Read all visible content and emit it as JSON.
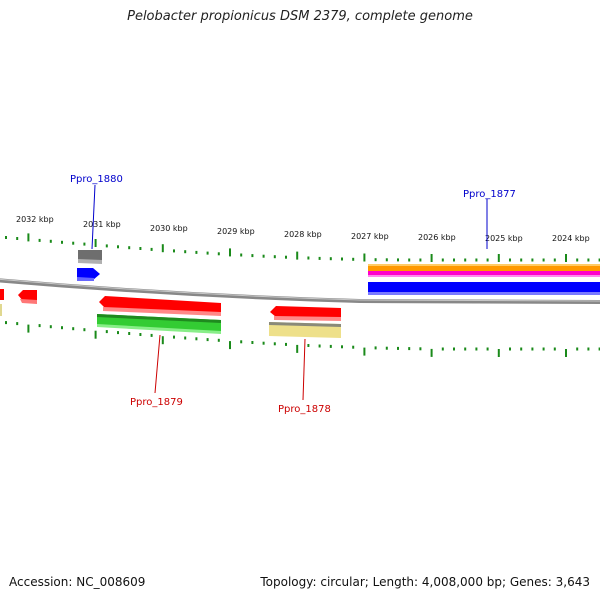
{
  "title": "Pelobacter propionicus DSM 2379, complete genome",
  "footer": {
    "accession": "Accession: NC_008609",
    "stats": "Topology: circular; Length: 4,008,000 bp; Genes: 3,643"
  },
  "scale_labels": [
    "2032 kbp",
    "2031 kbp",
    "2030 kbp",
    "2029 kbp",
    "2028 kbp",
    "2027 kbp",
    "2026 kbp",
    "2025 kbp",
    "2024 kbp"
  ],
  "gene_labels": {
    "ppro_1880": "Ppro_1880",
    "ppro_1877": "Ppro_1877",
    "ppro_1879": "Ppro_1879",
    "ppro_1878": "Ppro_1878"
  },
  "colors": {
    "forward_label": "#0000cc",
    "reverse_label": "#cc0000",
    "tick": "#1a8a1a",
    "backbone": "#8a8a8a",
    "red_feature": "#ff0000",
    "green_feature": "#33cc33",
    "blue_feature": "#0000ff",
    "gray_feature": "#707070",
    "khaki_feature": "#eee08a",
    "orange_feature": "#ff9900",
    "magenta_feature": "#ff00cc"
  }
}
